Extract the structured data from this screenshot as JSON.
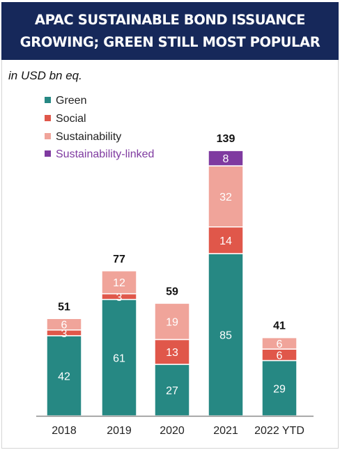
{
  "header": {
    "title_line1": "APAC SUSTAINABLE BOND ISSUANCE",
    "title_line2": "GROWING; GREEN STILL MOST POPULAR"
  },
  "unit_label": "in USD bn eq.",
  "chart_data": {
    "type": "bar",
    "stacked": true,
    "categories": [
      "2018",
      "2019",
      "2020",
      "2021",
      "2022 YTD"
    ],
    "series": [
      {
        "name": "Green",
        "color": "#268883",
        "values": [
          42,
          61,
          27,
          85,
          29
        ]
      },
      {
        "name": "Social",
        "color": "#e0574a",
        "values": [
          3,
          3,
          13,
          14,
          6
        ]
      },
      {
        "name": "Sustainability",
        "color": "#f0a49a",
        "values": [
          6,
          12,
          19,
          32,
          6
        ]
      },
      {
        "name": "Sustainability-linked",
        "color": "#7f3aa0",
        "values": [
          0,
          0,
          0,
          8,
          0
        ]
      }
    ],
    "segment_labels": [
      [
        "42",
        "61",
        "27",
        "85",
        "29"
      ],
      [
        "3",
        "3",
        "13",
        "14",
        "6"
      ],
      [
        "6",
        "12",
        "19",
        "32",
        "6"
      ],
      [
        "",
        "",
        "",
        "8",
        ""
      ]
    ],
    "totals": [
      "51",
      "77",
      "59",
      "139",
      "41"
    ],
    "legend_position": "top-left",
    "grid": false,
    "ylim": [
      0,
      139
    ]
  }
}
